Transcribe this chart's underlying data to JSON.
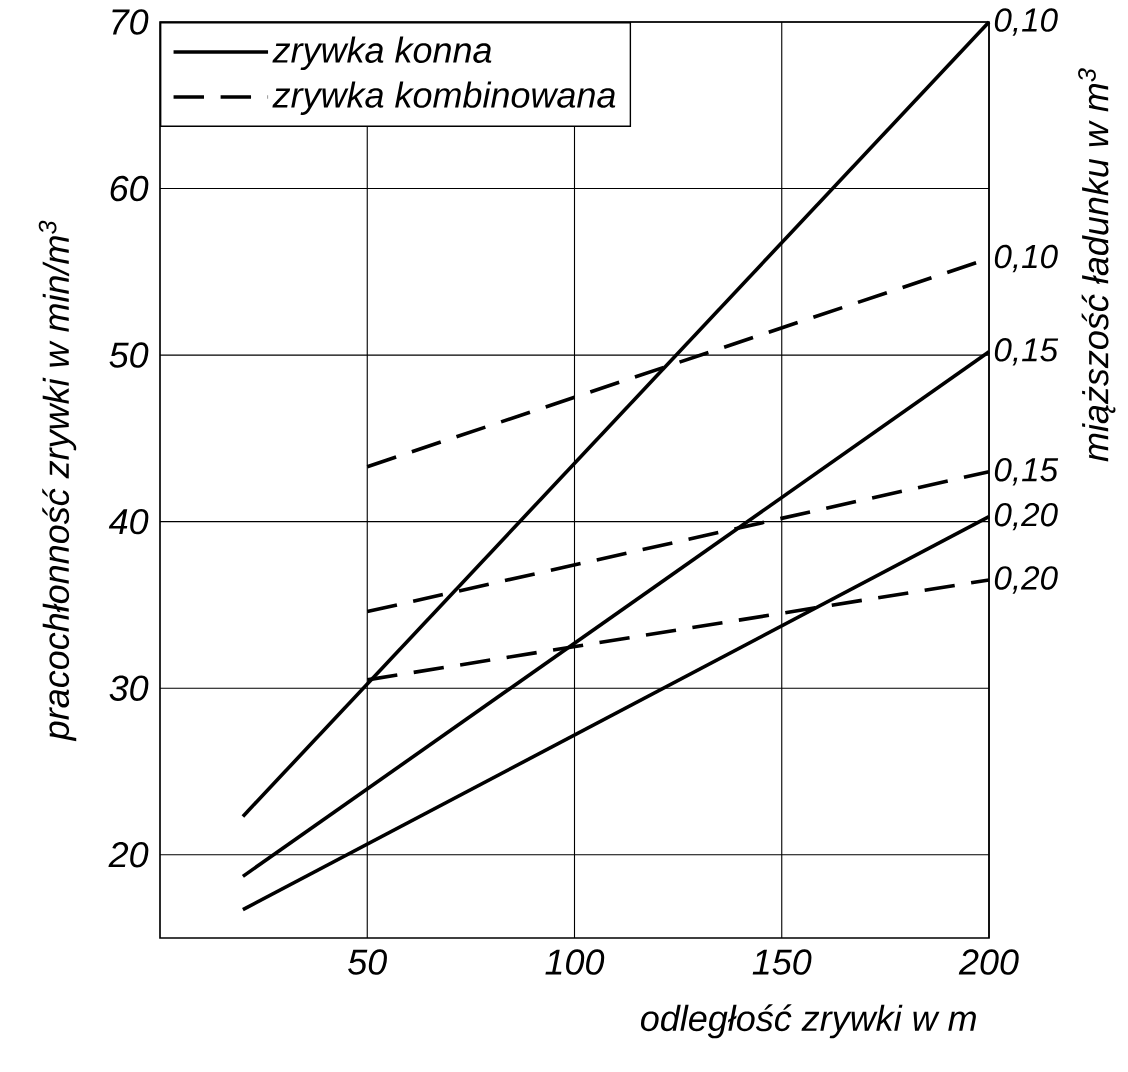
{
  "chart_data": {
    "type": "line",
    "xlabel": "odległość zrywki w m",
    "ylabel": "pracochłonność zrywki w min/m$^{3}$",
    "y2label": "miąższość ładunku w m$^{3}$",
    "xlim": [
      0,
      200
    ],
    "ylim": [
      15,
      70
    ],
    "xticks": [
      50,
      100,
      150,
      200
    ],
    "yticks": [
      20,
      30,
      40,
      50,
      60,
      70
    ],
    "grid": true,
    "legend": "top left",
    "marker": "none",
    "series": [
      {
        "name": "zrywka konna",
        "color": "#000000",
        "line_style": "solid",
        "x": [
          20,
          200
        ],
        "values": [
          22.3,
          70
        ]
      },
      {
        "color": "#000000",
        "line_style": "solid",
        "x": [
          20,
          200
        ],
        "values": [
          18.7,
          50.2
        ]
      },
      {
        "color": "#000000",
        "line_style": "solid",
        "x": [
          20,
          200
        ],
        "values": [
          16.7,
          40.3
        ]
      },
      {
        "name": "zrywka kombinowana",
        "color": "#000000",
        "line_style": "dashed",
        "x": [
          50,
          200
        ],
        "values": [
          43.3,
          55.8
        ]
      },
      {
        "color": "#000000",
        "line_style": "dashed",
        "x": [
          50,
          200
        ],
        "values": [
          34.6,
          43
        ]
      },
      {
        "color": "#000000",
        "line_style": "dashed",
        "x": [
          50,
          200
        ],
        "values": [
          30.5,
          36.5
        ]
      }
    ],
    "annotations": [
      "0,10",
      "0,10",
      "0,15",
      "0,15",
      "0,20",
      "0,20"
    ]
  }
}
